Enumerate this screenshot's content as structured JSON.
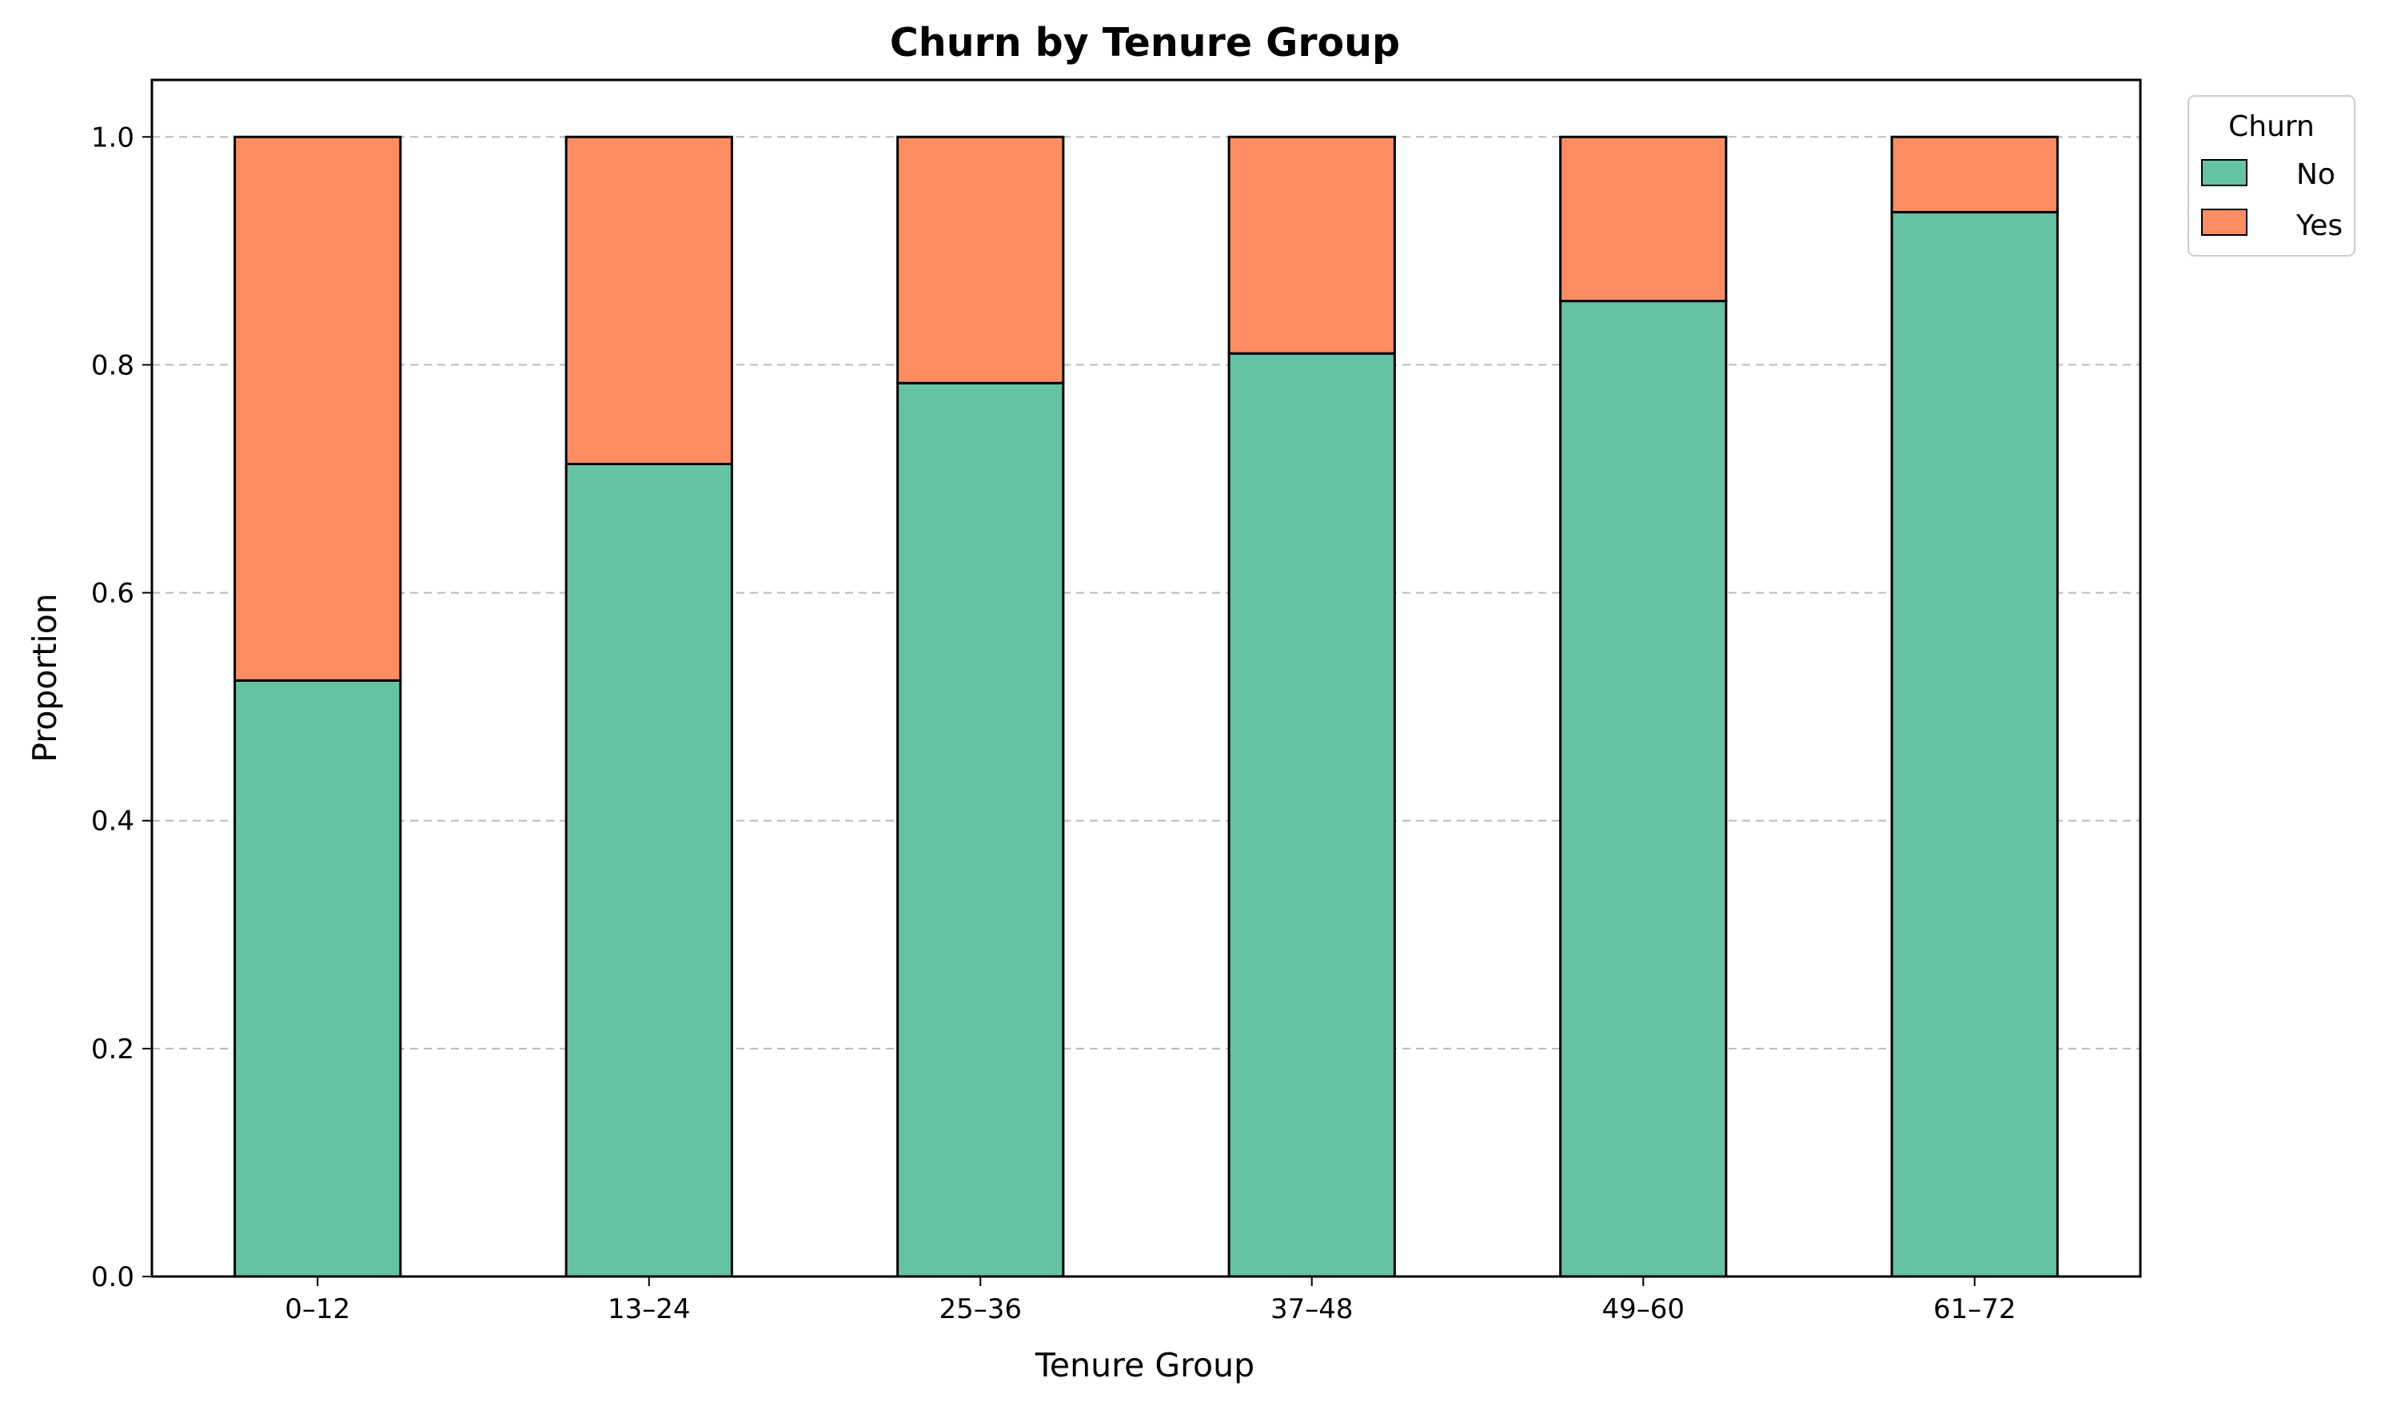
{
  "chart_data": {
    "type": "bar",
    "stacked": true,
    "title": "Churn by Tenure Group",
    "xlabel": "Tenure Group",
    "ylabel": "Proportion",
    "categories": [
      "0–12",
      "13–24",
      "25–36",
      "37–48",
      "49–60",
      "61–72"
    ],
    "series": [
      {
        "name": "No",
        "color": "#66c2a5",
        "values": [
          0.523,
          0.713,
          0.784,
          0.81,
          0.856,
          0.934
        ]
      },
      {
        "name": "Yes",
        "color": "#fc8d62",
        "values": [
          0.477,
          0.287,
          0.216,
          0.19,
          0.144,
          0.066
        ]
      }
    ],
    "ylim": [
      0,
      1.05
    ],
    "yticks": [
      0.0,
      0.2,
      0.4,
      0.6,
      0.8,
      1.0
    ],
    "ytick_labels": [
      "0.0",
      "0.2",
      "0.4",
      "0.6",
      "0.8",
      "1.0"
    ],
    "grid": "y-dashed",
    "legend": {
      "title": "Churn",
      "placement": "outside-top-right"
    }
  }
}
